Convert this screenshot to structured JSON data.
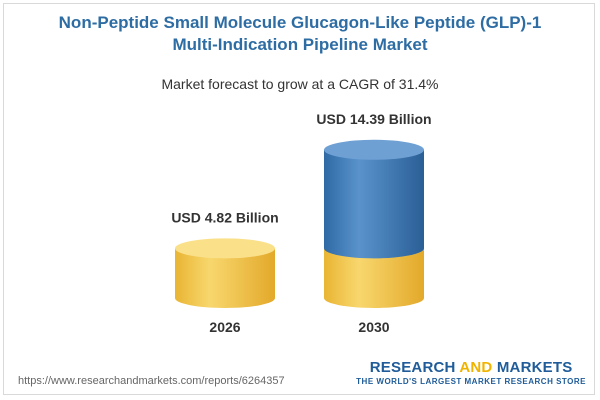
{
  "title_line1": "Non-Peptide Small Molecule Glucagon-Like Peptide (GLP)-1",
  "title_line2": "Multi-Indication Pipeline Market",
  "subtitle": "Market forecast to grow at a CAGR of 31.4%",
  "chart_data": {
    "type": "bar",
    "categories": [
      "2026",
      "2030"
    ],
    "values": [
      4.82,
      14.39
    ],
    "unit": "USD Billion",
    "data_labels": [
      "USD 4.82 Billion",
      "USD 14.39 Billion"
    ],
    "cagr": "31.4%",
    "colors": {
      "gold": "#f5c94e",
      "blue": "#3f7ab5"
    }
  },
  "footer": {
    "url": "https://www.researchandmarkets.com/reports/6264357",
    "brand_part1": "RESEARCH ",
    "brand_part2": "AND",
    "brand_part3": " MARKETS",
    "tagline": "THE WORLD'S LARGEST MARKET RESEARCH STORE"
  }
}
